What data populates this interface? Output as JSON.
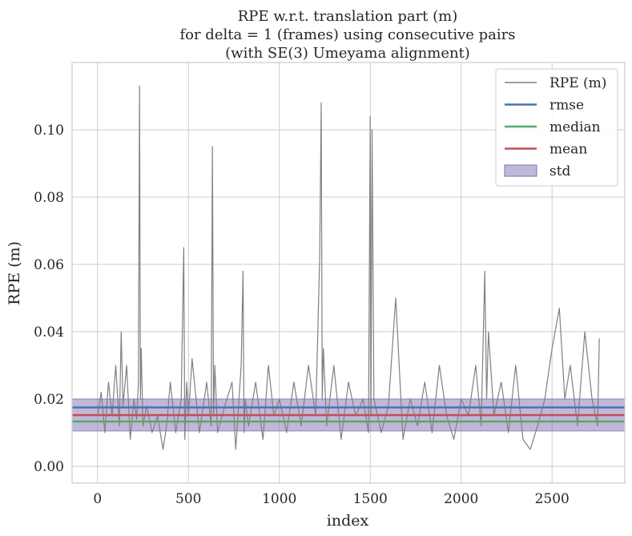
{
  "chart_data": {
    "type": "line",
    "title": [
      "RPE w.r.t. translation part (m)",
      "for delta = 1 (frames) using consecutive pairs",
      "(with SE(3) Umeyama alignment)"
    ],
    "xlabel": "index",
    "ylabel": "RPE (m)",
    "xlim": [
      -140,
      2900
    ],
    "ylim": [
      -0.005,
      0.12
    ],
    "xticks": [
      0,
      500,
      1000,
      1500,
      2000,
      2500
    ],
    "xtick_labels": [
      "0",
      "500",
      "1000",
      "1500",
      "2000",
      "2500"
    ],
    "yticks": [
      0.0,
      0.02,
      0.04,
      0.06,
      0.08,
      0.1
    ],
    "ytick_labels": [
      "0.00",
      "0.02",
      "0.04",
      "0.06",
      "0.08",
      "0.10"
    ],
    "grid": true,
    "legend_position": "top-right",
    "legend": [
      "RPE (m)",
      "rmse",
      "median",
      "mean",
      "std"
    ],
    "series": [
      {
        "name": "RPE (m)",
        "color": "#808080",
        "x": [
          0,
          20,
          40,
          60,
          80,
          100,
          120,
          130,
          140,
          160,
          180,
          200,
          215,
          225,
          231,
          236,
          240,
          250,
          270,
          300,
          330,
          360,
          380,
          400,
          430,
          460,
          474,
          480,
          490,
          500,
          520,
          560,
          600,
          625,
          632,
          638,
          645,
          660,
          700,
          740,
          760,
          790,
          800,
          806,
          812,
          830,
          870,
          910,
          940,
          970,
          1000,
          1040,
          1080,
          1120,
          1160,
          1200,
          1222,
          1230,
          1236,
          1242,
          1260,
          1300,
          1340,
          1380,
          1420,
          1460,
          1490,
          1500,
          1504,
          1510,
          1520,
          1560,
          1600,
          1640,
          1680,
          1720,
          1760,
          1800,
          1840,
          1880,
          1920,
          1960,
          2000,
          2040,
          2080,
          2110,
          2130,
          2140,
          2150,
          2180,
          2220,
          2260,
          2300,
          2340,
          2380,
          2420,
          2460,
          2500,
          2540,
          2570,
          2600,
          2640,
          2680,
          2720,
          2750,
          2760
        ],
        "y": [
          0.015,
          0.022,
          0.01,
          0.025,
          0.015,
          0.03,
          0.012,
          0.04,
          0.018,
          0.03,
          0.008,
          0.02,
          0.014,
          0.025,
          0.113,
          0.02,
          0.035,
          0.012,
          0.018,
          0.01,
          0.015,
          0.005,
          0.012,
          0.025,
          0.01,
          0.02,
          0.065,
          0.008,
          0.025,
          0.015,
          0.032,
          0.01,
          0.025,
          0.012,
          0.095,
          0.015,
          0.03,
          0.01,
          0.018,
          0.025,
          0.005,
          0.03,
          0.058,
          0.01,
          0.02,
          0.012,
          0.025,
          0.008,
          0.03,
          0.015,
          0.02,
          0.01,
          0.025,
          0.012,
          0.03,
          0.015,
          0.062,
          0.108,
          0.02,
          0.035,
          0.012,
          0.03,
          0.008,
          0.025,
          0.015,
          0.02,
          0.01,
          0.104,
          0.015,
          0.1,
          0.02,
          0.01,
          0.018,
          0.05,
          0.008,
          0.02,
          0.012,
          0.025,
          0.01,
          0.03,
          0.015,
          0.008,
          0.02,
          0.015,
          0.03,
          0.012,
          0.058,
          0.02,
          0.04,
          0.015,
          0.025,
          0.01,
          0.03,
          0.008,
          0.005,
          0.012,
          0.02,
          0.035,
          0.047,
          0.02,
          0.03,
          0.012,
          0.04,
          0.02,
          0.012,
          0.038
        ]
      },
      {
        "name": "rmse",
        "color": "#4c72b0",
        "value": 0.0175
      },
      {
        "name": "median",
        "color": "#55a868",
        "value": 0.0133
      },
      {
        "name": "mean",
        "color": "#c44e52",
        "value": 0.0152
      },
      {
        "name": "std",
        "color": "#8172b2",
        "range": [
          0.0105,
          0.02
        ]
      }
    ]
  }
}
